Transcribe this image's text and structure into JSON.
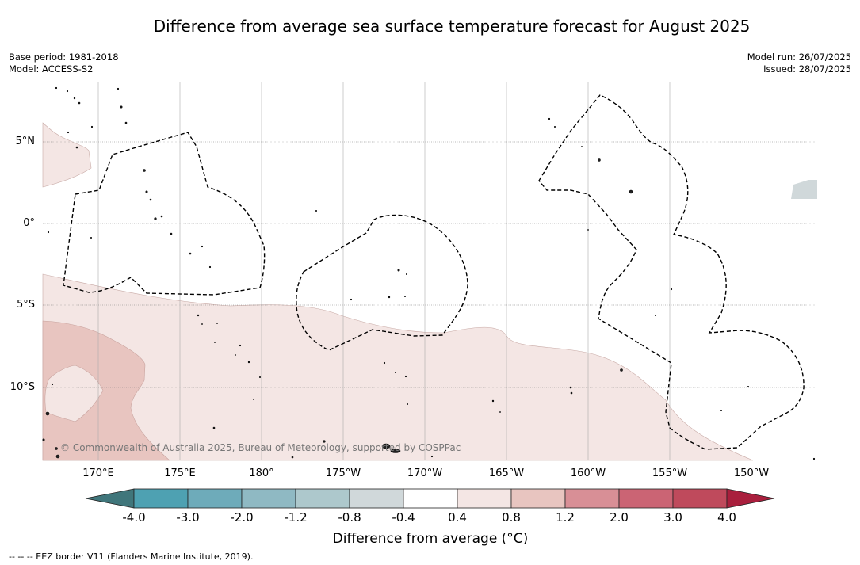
{
  "title": "Difference from average sea surface temperature forecast for August 2025",
  "meta": {
    "base_period": "Base period: 1981-2018",
    "model": "Model: ACCESS-S2",
    "model_run": "Model run: 26/07/2025",
    "issued": "Issued: 28/07/2025"
  },
  "axes": {
    "lat_labels": [
      "5°N",
      "0°",
      "5°S",
      "10°S"
    ],
    "lon_labels": [
      "170°E",
      "175°E",
      "180°",
      "175°W",
      "170°W",
      "165°W",
      "160°W",
      "155°W",
      "150°W"
    ]
  },
  "copyright": "© Commonwealth of Australia 2025, Bureau of Meteorology, supported by COSPPac",
  "colorbar": {
    "ticks": [
      "-4.0",
      "-3.0",
      "-2.0",
      "-1.2",
      "-0.8",
      "-0.4",
      "0.4",
      "0.8",
      "1.2",
      "2.0",
      "3.0",
      "4.0"
    ],
    "colors": [
      "#40767b",
      "#4ea1b2",
      "#6eabba",
      "#8fb9c3",
      "#adc8cc",
      "#d0d8da",
      "#ffffff",
      "#f4e6e4",
      "#e8c5c0",
      "#d88f96",
      "#cb6474",
      "#bf4a5c",
      "#a91f3d"
    ],
    "label": "Difference from average (°C)"
  },
  "footnote": "--  --  -- EEZ border V11 (Flanders Marine Institute, 2019)."
}
